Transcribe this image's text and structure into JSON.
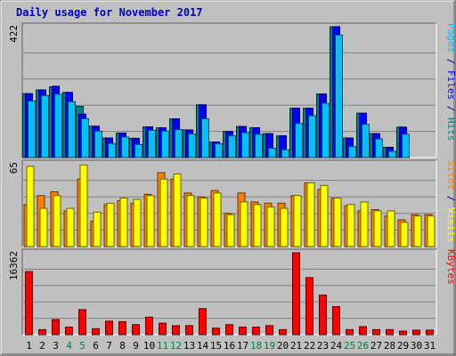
{
  "chart_data": {
    "type": "bar",
    "title": "Daily usage for November 2017",
    "categories": [
      "1",
      "2",
      "3",
      "4",
      "5",
      "6",
      "7",
      "8",
      "9",
      "10",
      "11",
      "12",
      "13",
      "14",
      "15",
      "16",
      "17",
      "18",
      "19",
      "20",
      "21",
      "22",
      "23",
      "24",
      "25",
      "26",
      "27",
      "28",
      "29",
      "30",
      "31"
    ],
    "weekend_categories": [
      "4",
      "5",
      "11",
      "12",
      "18",
      "19",
      "25",
      "26"
    ],
    "panels": [
      {
        "id": "hits",
        "max_label": "422",
        "ymax": 422,
        "side_label": [
          {
            "text": "Pages",
            "color": "#00c0ff"
          },
          {
            "text": " / ",
            "color": "#000080"
          },
          {
            "text": "Files",
            "color": "#0000ff"
          },
          {
            "text": " / ",
            "color": "#000080"
          },
          {
            "text": "Hits",
            "color": "#008080"
          }
        ],
        "series": [
          {
            "name": "Hits",
            "color": "#008080",
            "values": [
              206,
              218,
              228,
              210,
              165,
              101,
              63,
              79,
              62,
              99,
              96,
              125,
              89,
              170,
              50,
              84,
              100,
              96,
              77,
              70,
              159,
              159,
              205,
              422,
              63,
              143,
              77,
              33,
              98,
              0,
              0
            ]
          },
          {
            "name": "Files",
            "color": "#0000ff",
            "values": [
              206,
              218,
              230,
              210,
              140,
              101,
              63,
              79,
              62,
              99,
              96,
              125,
              89,
              170,
              50,
              84,
              100,
              96,
              77,
              70,
              159,
              159,
              205,
              422,
              63,
              143,
              77,
              33,
              98,
              0,
              0
            ]
          },
          {
            "name": "Pages",
            "color": "#00c0ff",
            "values": [
              182,
              200,
              204,
              180,
              125,
              85,
              45,
              66,
              42,
              88,
              85,
              90,
              76,
              125,
              45,
              70,
              80,
              75,
              30,
              25,
              110,
              135,
              175,
              395,
              35,
              107,
              60,
              20,
              75,
              0,
              0
            ]
          }
        ]
      },
      {
        "id": "visits",
        "max_label": "65",
        "ymax": 65,
        "side_label": [
          {
            "text": "Sites",
            "color": "#ff8000"
          },
          {
            "text": " / ",
            "color": "#000080"
          },
          {
            "text": "Visits",
            "color": "#ffff00"
          }
        ],
        "series": [
          {
            "name": "Visits",
            "color": "#ff8000",
            "values": [
              33,
              40,
              43,
              28,
              53,
              20,
              33,
              36,
              34,
              41,
              58,
              53,
              42,
              39,
              44,
              26,
              42,
              35,
              34,
              34,
              40,
              50,
              45,
              38,
              32,
              28,
              29,
              24,
              21,
              25,
              25
            ]
          },
          {
            "name": "Sites",
            "color": "#ffff00",
            "values": [
              63,
              30,
              40,
              30,
              64,
              27,
              34,
              38,
              37,
              40,
              53,
              57,
              40,
              38,
              42,
              25,
              35,
              33,
              31,
              30,
              40,
              50,
              48,
              38,
              33,
              35,
              28,
              28,
              19,
              24,
              24
            ]
          }
        ]
      },
      {
        "id": "kbytes",
        "max_label": "16362",
        "ymax": 16362,
        "side_label": [
          {
            "text": "KBytes",
            "color": "#ff0000"
          }
        ],
        "series": [
          {
            "name": "KBytes",
            "color": "#ff0000",
            "values": [
              12600,
              1000,
              3000,
              1500,
              5000,
              1200,
              2700,
              2600,
              2000,
              3500,
              2300,
              1800,
              1800,
              5200,
              1300,
              2000,
              1500,
              1500,
              1800,
              1000,
              16362,
              11400,
              7900,
              5600,
              1000,
              1600,
              1000,
              1000,
              700,
              900,
              900
            ]
          }
        ]
      }
    ]
  }
}
